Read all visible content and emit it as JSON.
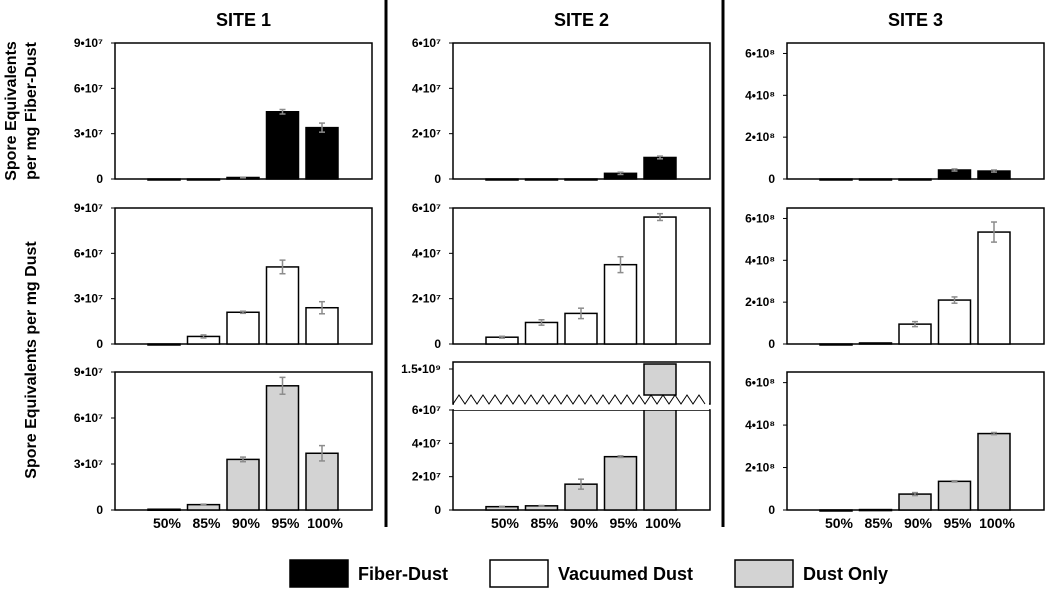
{
  "chart_data": {
    "type": "bar",
    "categories": [
      "50%",
      "85%",
      "90%",
      "95%",
      "100%"
    ],
    "sites": [
      "SITE 1",
      "SITE 2",
      "SITE 3"
    ],
    "ylabels": [
      "Spore Equivalents",
      "per mg Fiber-Dust",
      "Spore Equivalents per mg Dust"
    ],
    "legend": [
      {
        "name": "Fiber-Dust",
        "color": "#000000"
      },
      {
        "name": "Vacuumed Dust",
        "color": "#ffffff"
      },
      {
        "name": "Dust Only",
        "color": "#d3d3d3"
      }
    ],
    "error_bar_color": "#8c8c8c",
    "legend_placement": "bottom",
    "panels": [
      {
        "site": "SITE 1",
        "series": "Fiber-Dust",
        "ylim": [
          0,
          90000000
        ],
        "ticks": [
          0,
          30000000,
          60000000,
          90000000
        ],
        "tick_labels": [
          "0",
          "3•10⁷",
          "6•10⁷",
          "9•10⁷"
        ],
        "values": [
          0,
          0,
          1000000,
          44500000,
          34000000
        ],
        "errors": [
          0,
          0,
          200000,
          1500000,
          3000000
        ]
      },
      {
        "site": "SITE 2",
        "series": "Fiber-Dust",
        "ylim": [
          0,
          60000000
        ],
        "ticks": [
          0,
          20000000,
          40000000,
          60000000
        ],
        "tick_labels": [
          "0",
          "2•10⁷",
          "4•10⁷",
          "6•10⁷"
        ],
        "values": [
          0,
          0,
          0,
          2500000,
          9500000
        ],
        "errors": [
          0,
          0,
          0,
          500000,
          600000
        ]
      },
      {
        "site": "SITE 3",
        "series": "Fiber-Dust",
        "ylim": [
          0,
          650000000
        ],
        "ticks": [
          0,
          200000000,
          400000000,
          600000000
        ],
        "tick_labels": [
          "0",
          "2•10⁸",
          "4•10⁸",
          "6•10⁸"
        ],
        "values": [
          0,
          0,
          0,
          43000000,
          38000000
        ],
        "errors": [
          0,
          0,
          0,
          5000000,
          5000000
        ]
      },
      {
        "site": "SITE 1",
        "series": "Vacuumed Dust",
        "ylim": [
          0,
          90000000
        ],
        "ticks": [
          0,
          30000000,
          60000000,
          90000000
        ],
        "tick_labels": [
          "0",
          "3•10⁷",
          "6•10⁷",
          "9•10⁷"
        ],
        "values": [
          0,
          5000000,
          21000000,
          51000000,
          24000000
        ],
        "errors": [
          0,
          1000000,
          700000,
          4500000,
          4000000
        ]
      },
      {
        "site": "SITE 2",
        "series": "Vacuumed Dust",
        "ylim": [
          0,
          60000000
        ],
        "ticks": [
          0,
          20000000,
          40000000,
          60000000
        ],
        "tick_labels": [
          "0",
          "2•10⁷",
          "4•10⁷",
          "6•10⁷"
        ],
        "values": [
          3000000,
          9500000,
          13500000,
          35000000,
          56000000
        ],
        "errors": [
          400000,
          1200000,
          2300000,
          3500000,
          1500000
        ]
      },
      {
        "site": "SITE 3",
        "series": "Vacuumed Dust",
        "ylim": [
          0,
          650000000
        ],
        "ticks": [
          0,
          200000000,
          400000000,
          600000000
        ],
        "tick_labels": [
          "0",
          "2•10⁸",
          "4•10⁸",
          "6•10⁸"
        ],
        "values": [
          0,
          5000000,
          95000000,
          210000000,
          535000000
        ],
        "errors": [
          0,
          0,
          12000000,
          15000000,
          48000000
        ]
      },
      {
        "site": "SITE 1",
        "series": "Dust Only",
        "ylim": [
          0,
          90000000
        ],
        "ticks": [
          0,
          30000000,
          60000000,
          90000000
        ],
        "tick_labels": [
          "0",
          "3•10⁷",
          "6•10⁷",
          "9•10⁷"
        ],
        "values": [
          500000,
          3500000,
          33000000,
          81000000,
          37000000
        ],
        "errors": [
          0,
          300000,
          1500000,
          5500000,
          5000000
        ]
      },
      {
        "site": "SITE 2",
        "series": "Dust Only",
        "ylim": [
          0,
          60000000
        ],
        "ticks": [
          0,
          20000000,
          40000000,
          60000000
        ],
        "tick_labels": [
          "0",
          "2•10⁷",
          "4•10⁷",
          "6•10⁷"
        ],
        "values": [
          2000000,
          2500000,
          15500000,
          32000000,
          1550000000
        ],
        "errors": [
          200000,
          200000,
          3000000,
          500000,
          0
        ],
        "axis_break": {
          "upper_tick": 1500000000,
          "upper_tick_label": "1.5•10⁹"
        }
      },
      {
        "site": "SITE 3",
        "series": "Dust Only",
        "ylim": [
          0,
          650000000
        ],
        "ticks": [
          0,
          200000000,
          400000000,
          600000000
        ],
        "tick_labels": [
          "0",
          "2•10⁸",
          "4•10⁸",
          "6•10⁸"
        ],
        "values": [
          0,
          2000000,
          75000000,
          135000000,
          360000000
        ],
        "errors": [
          0,
          0,
          7000000,
          3000000,
          5000000
        ]
      }
    ]
  }
}
